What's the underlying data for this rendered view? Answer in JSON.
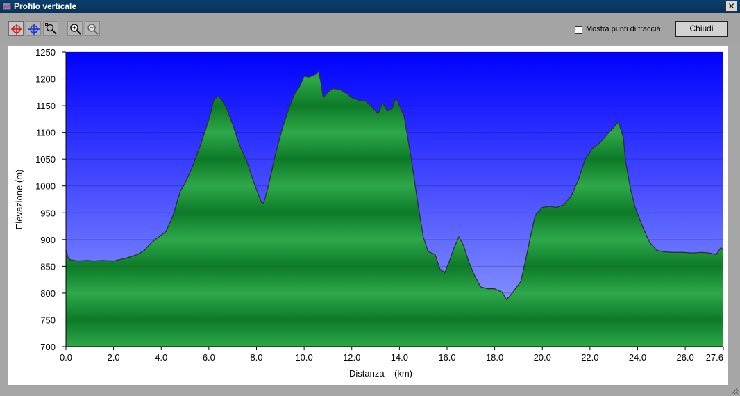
{
  "window": {
    "title": "Profilo verticale",
    "close_label": "✕"
  },
  "toolbar": {
    "tools": [
      {
        "name": "crosshair-red",
        "icon": "target-red-icon"
      },
      {
        "name": "crosshair-blue",
        "icon": "target-blue-icon"
      },
      {
        "name": "zoom-window",
        "icon": "zoom-rect-icon"
      },
      {
        "name": "zoom-in",
        "icon": "zoom-in-icon"
      },
      {
        "name": "zoom-out",
        "icon": "zoom-out-icon"
      }
    ],
    "show_points_label": "Mostra punti di traccia",
    "show_points_checked": false,
    "close_button": "Chiudi"
  },
  "colors": {
    "sky_top": "#0000ff",
    "sky_bottom": "#9aa8ff",
    "terrain_light": "#2ea84a",
    "terrain_dark": "#0d7a28",
    "outline": "#303030"
  },
  "chart_data": {
    "type": "area",
    "xlabel": "Distanza    (km)",
    "ylabel": "Elevazione (m)",
    "xlim": [
      0,
      27.6
    ],
    "ylim": [
      700,
      1250
    ],
    "xticks": [
      "0.0",
      "2.0",
      "4.0",
      "6.0",
      "8.0",
      "10.0",
      "12.0",
      "14.0",
      "16.0",
      "18.0",
      "20.0",
      "22.0",
      "24.0",
      "26.0",
      "27.6"
    ],
    "xtick_values": [
      0,
      2,
      4,
      6,
      8,
      10,
      12,
      14,
      16,
      18,
      20,
      22,
      24,
      26,
      27.6
    ],
    "yticks": [
      700,
      750,
      800,
      850,
      900,
      950,
      1000,
      1050,
      1100,
      1150,
      1200,
      1250
    ],
    "grid": true,
    "series": [
      {
        "x": [
          0.0,
          0.1,
          0.2,
          0.5,
          0.9,
          1.2,
          1.5,
          2.0,
          2.5,
          3.0,
          3.3,
          3.6,
          3.9,
          4.2,
          4.5,
          4.8,
          5.0,
          5.3,
          5.6,
          5.9,
          6.1,
          6.2,
          6.4,
          6.7,
          7.0,
          7.3,
          7.6,
          7.9,
          8.2,
          8.3,
          8.5,
          8.8,
          9.1,
          9.4,
          9.6,
          9.8,
          10.0,
          10.2,
          10.5,
          10.6,
          10.7,
          10.8,
          11.0,
          11.2,
          11.5,
          11.8,
          12.0,
          12.3,
          12.6,
          12.9,
          13.1,
          13.3,
          13.5,
          13.7,
          13.85,
          14.0,
          14.2,
          14.5,
          14.8,
          15.0,
          15.2,
          15.5,
          15.7,
          15.9,
          16.1,
          16.3,
          16.5,
          16.7,
          16.9,
          17.1,
          17.4,
          17.7,
          18.0,
          18.3,
          18.5,
          18.7,
          18.9,
          19.1,
          19.3,
          19.5,
          19.7,
          20.0,
          20.3,
          20.6,
          20.9,
          21.2,
          21.5,
          21.8,
          22.1,
          22.4,
          22.7,
          23.0,
          23.2,
          23.4,
          23.5,
          23.7,
          23.9,
          24.2,
          24.5,
          24.8,
          25.1,
          25.5,
          25.9,
          26.3,
          26.7,
          27.0,
          27.3,
          27.5,
          27.6
        ],
        "y": [
          880,
          865,
          862,
          860,
          861,
          860,
          861,
          860,
          865,
          872,
          880,
          895,
          905,
          915,
          945,
          990,
          1005,
          1035,
          1070,
          1110,
          1140,
          1160,
          1168,
          1150,
          1115,
          1075,
          1045,
          1005,
          970,
          968,
          1000,
          1060,
          1110,
          1150,
          1172,
          1185,
          1205,
          1203,
          1209,
          1215,
          1195,
          1165,
          1175,
          1182,
          1180,
          1172,
          1165,
          1160,
          1158,
          1145,
          1135,
          1155,
          1140,
          1145,
          1165,
          1150,
          1130,
          1050,
          960,
          905,
          878,
          872,
          845,
          838,
          860,
          885,
          905,
          888,
          860,
          838,
          812,
          808,
          808,
          802,
          788,
          798,
          810,
          822,
          862,
          905,
          945,
          960,
          962,
          960,
          965,
          980,
          1010,
          1050,
          1070,
          1080,
          1095,
          1110,
          1120,
          1090,
          1045,
          995,
          960,
          925,
          895,
          880,
          877,
          876,
          876,
          875,
          876,
          875,
          872,
          885,
          880
        ],
        "name": ""
      }
    ]
  }
}
